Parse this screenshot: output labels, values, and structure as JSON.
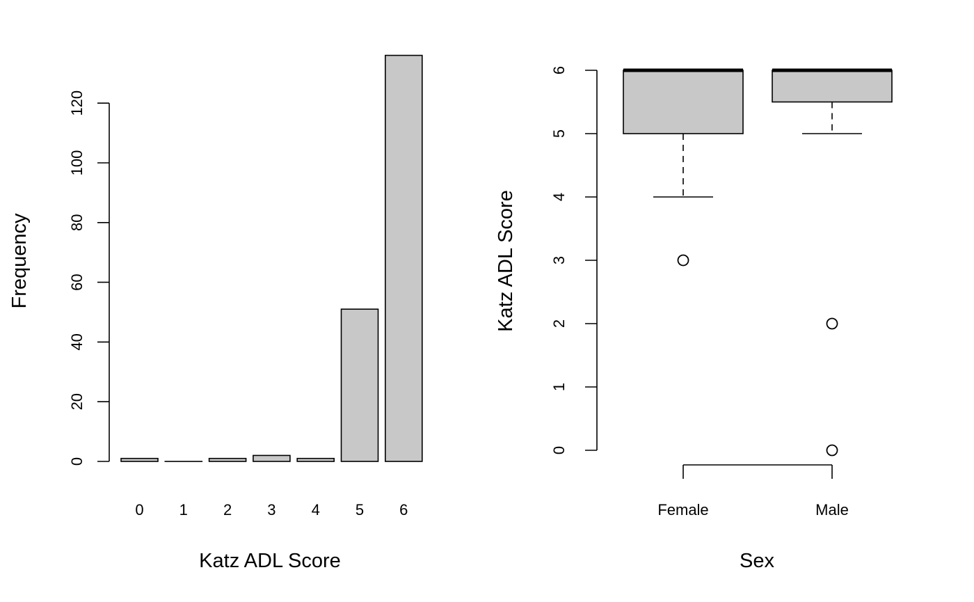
{
  "colors": {
    "fill": "#c8c8c8",
    "stroke": "#000000",
    "background": "#ffffff"
  },
  "chart_data": [
    {
      "type": "bar",
      "title": "",
      "xlabel": "Katz ADL Score",
      "ylabel": "Frequency",
      "categories": [
        "0",
        "1",
        "2",
        "3",
        "4",
        "5",
        "6"
      ],
      "values": [
        1,
        0,
        1,
        2,
        1,
        51,
        136
      ],
      "yticks": [
        "0",
        "20",
        "40",
        "60",
        "80",
        "100",
        "120"
      ],
      "ylim": [
        0,
        136
      ],
      "grid": false,
      "legend": "none"
    },
    {
      "type": "boxplot",
      "title": "",
      "xlabel": "Sex",
      "ylabel": "Katz ADL Score",
      "categories": [
        "Female",
        "Male"
      ],
      "boxes": [
        {
          "category": "Female",
          "whisker_low": 4,
          "q1": 5,
          "median": 6,
          "q3": 6,
          "whisker_high": 6,
          "outliers": [
            3
          ]
        },
        {
          "category": "Male",
          "whisker_low": 5,
          "q1": 5.5,
          "median": 6,
          "q3": 6,
          "whisker_high": 6,
          "outliers": [
            2,
            0
          ]
        }
      ],
      "yticks": [
        "0",
        "1",
        "2",
        "3",
        "4",
        "5",
        "6"
      ],
      "ylim": [
        0,
        6
      ],
      "grid": false,
      "legend": "none"
    }
  ]
}
